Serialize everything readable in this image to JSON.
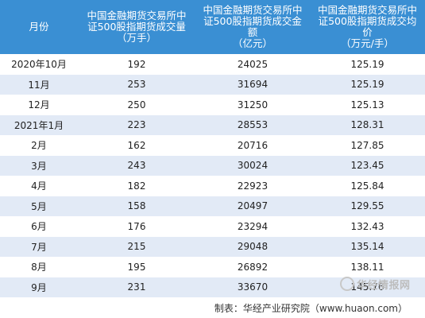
{
  "header": {
    "col1": "月份",
    "col2_line1": "中国金融期货交易所中",
    "col2_line2": "证500股指期货成交量",
    "col2_line3": "（万手）",
    "col3_line1": "中国金融期货交易所中",
    "col3_line2": "证500股指期货成交金",
    "col3_line3": "额",
    "col3_line4": "（亿元）",
    "col4_line1": "中国金融期货交易所中",
    "col4_line2": "证500股指期货成交均",
    "col4_line3": "价",
    "col4_line4": "（万元/手）"
  },
  "rows": [
    {
      "month": "2020年10月",
      "volume": "192",
      "amount": "24025",
      "price": "125.19"
    },
    {
      "month": "11月",
      "volume": "253",
      "amount": "31694",
      "price": "125.19"
    },
    {
      "month": "12月",
      "volume": "250",
      "amount": "31250",
      "price": "125.13"
    },
    {
      "month": "2021年1月",
      "volume": "223",
      "amount": "28553",
      "price": "128.31"
    },
    {
      "month": "2月",
      "volume": "162",
      "amount": "20716",
      "price": "127.85"
    },
    {
      "month": "3月",
      "volume": "243",
      "amount": "30024",
      "price": "123.45"
    },
    {
      "month": "4月",
      "volume": "182",
      "amount": "22923",
      "price": "125.84"
    },
    {
      "month": "5月",
      "volume": "158",
      "amount": "20497",
      "price": "129.55"
    },
    {
      "month": "6月",
      "volume": "176",
      "amount": "23294",
      "price": "132.43"
    },
    {
      "month": "7月",
      "volume": "215",
      "amount": "29048",
      "price": "135.14"
    },
    {
      "month": "8月",
      "volume": "195",
      "amount": "26892",
      "price": "138.11"
    },
    {
      "month": "9月",
      "volume": "231",
      "amount": "33670",
      "price": "145.76"
    }
  ],
  "footer": {
    "source": "制表：华经产业研究院（www.huaon.com）"
  },
  "watermark": {
    "text": "华经情报网"
  },
  "colors": {
    "header_bg": "#3a8fd3",
    "row_alt_bg": "#e2eaf6"
  }
}
